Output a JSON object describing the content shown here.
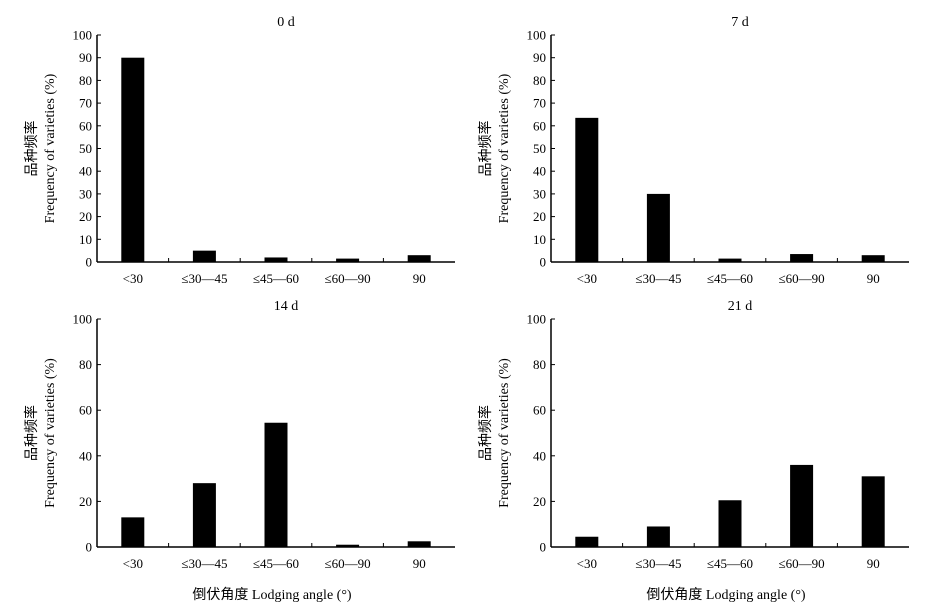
{
  "chart_data": [
    {
      "type": "bar",
      "title": "0 d",
      "ylabel_cn": "品种频率",
      "ylabel": "Frequency of varieties (%)",
      "xlabel": "",
      "categories": [
        "<30",
        "≤30—45",
        "≤45—60",
        "≤60—90",
        "90"
      ],
      "values": [
        90,
        5,
        2,
        1.5,
        3
      ],
      "yticks": [
        0,
        10,
        20,
        30,
        40,
        50,
        60,
        70,
        80,
        90,
        100
      ],
      "ylim": [
        0,
        100
      ],
      "grid": false,
      "bar_color": "#000000"
    },
    {
      "type": "bar",
      "title": "7 d",
      "ylabel_cn": "品种频率",
      "ylabel": "Frequency of varieties (%)",
      "xlabel": "",
      "categories": [
        "<30",
        "≤30—45",
        "≤45—60",
        "≤60—90",
        "90"
      ],
      "values": [
        63.5,
        30,
        1.5,
        3.5,
        3
      ],
      "yticks": [
        0,
        10,
        20,
        30,
        40,
        50,
        60,
        70,
        80,
        90,
        100
      ],
      "ylim": [
        0,
        100
      ],
      "grid": false,
      "bar_color": "#000000"
    },
    {
      "type": "bar",
      "title": "14 d",
      "ylabel_cn": "品种频率",
      "ylabel": "Frequency of varieties (%)",
      "xlabel": "倒伏角度 Lodging angle (°)",
      "categories": [
        "<30",
        "≤30—45",
        "≤45—60",
        "≤60—90",
        "90"
      ],
      "values": [
        13,
        28,
        54.5,
        1,
        2.5
      ],
      "yticks": [
        0,
        20,
        40,
        60,
        80,
        100
      ],
      "ylim": [
        0,
        100
      ],
      "grid": false,
      "bar_color": "#000000"
    },
    {
      "type": "bar",
      "title": "21 d",
      "ylabel_cn": "品种频率",
      "ylabel": "Frequency of varieties (%)",
      "xlabel": "倒伏角度 Lodging angle (°)",
      "categories": [
        "<30",
        "≤30—45",
        "≤45—60",
        "≤60—90",
        "90"
      ],
      "values": [
        4.5,
        9,
        20.5,
        36,
        31
      ],
      "yticks": [
        0,
        20,
        40,
        60,
        80,
        100
      ],
      "ylim": [
        0,
        100
      ],
      "grid": false,
      "bar_color": "#000000"
    }
  ]
}
